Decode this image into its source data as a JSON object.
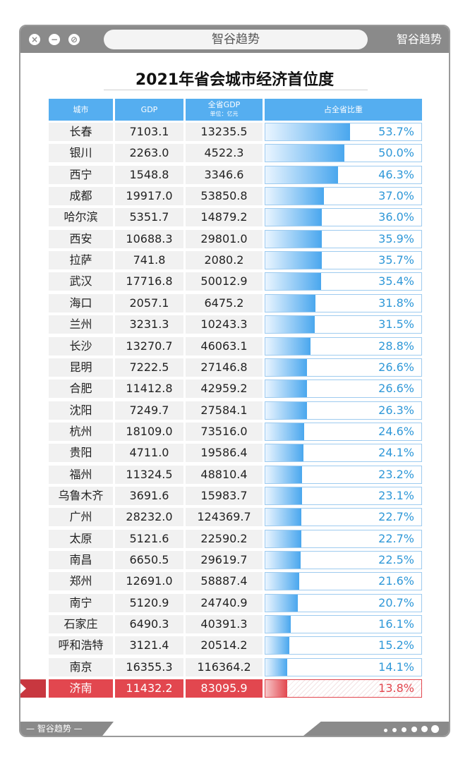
{
  "window": {
    "title": "智谷趋势",
    "brand": "智谷趋势",
    "footer_brand": "— 智谷趋势 —"
  },
  "chart_data": {
    "type": "table",
    "title": "2021年省会城市经济首位度",
    "columns": {
      "city": "城市",
      "gdp": "GDP",
      "prov_gdp": "全省GDP",
      "prov_gdp_unit": "单位：亿元",
      "share": "占全省比重"
    },
    "rows": [
      {
        "city": "长春",
        "gdp": "7103.1",
        "prov_gdp": "13235.5",
        "share": 53.7,
        "share_label": "53.7%"
      },
      {
        "city": "银川",
        "gdp": "2263.0",
        "prov_gdp": "4522.3",
        "share": 50.0,
        "share_label": "50.0%"
      },
      {
        "city": "西宁",
        "gdp": "1548.8",
        "prov_gdp": "3346.6",
        "share": 46.3,
        "share_label": "46.3%"
      },
      {
        "city": "成都",
        "gdp": "19917.0",
        "prov_gdp": "53850.8",
        "share": 37.0,
        "share_label": "37.0%"
      },
      {
        "city": "哈尔滨",
        "gdp": "5351.7",
        "prov_gdp": "14879.2",
        "share": 36.0,
        "share_label": "36.0%"
      },
      {
        "city": "西安",
        "gdp": "10688.3",
        "prov_gdp": "29801.0",
        "share": 35.9,
        "share_label": "35.9%"
      },
      {
        "city": "拉萨",
        "gdp": "741.8",
        "prov_gdp": "2080.2",
        "share": 35.7,
        "share_label": "35.7%"
      },
      {
        "city": "武汉",
        "gdp": "17716.8",
        "prov_gdp": "50012.9",
        "share": 35.4,
        "share_label": "35.4%"
      },
      {
        "city": "海口",
        "gdp": "2057.1",
        "prov_gdp": "6475.2",
        "share": 31.8,
        "share_label": "31.8%"
      },
      {
        "city": "兰州",
        "gdp": "3231.3",
        "prov_gdp": "10243.3",
        "share": 31.5,
        "share_label": "31.5%"
      },
      {
        "city": "长沙",
        "gdp": "13270.7",
        "prov_gdp": "46063.1",
        "share": 28.8,
        "share_label": "28.8%"
      },
      {
        "city": "昆明",
        "gdp": "7222.5",
        "prov_gdp": "27146.8",
        "share": 26.6,
        "share_label": "26.6%"
      },
      {
        "city": "合肥",
        "gdp": "11412.8",
        "prov_gdp": "42959.2",
        "share": 26.6,
        "share_label": "26.6%"
      },
      {
        "city": "沈阳",
        "gdp": "7249.7",
        "prov_gdp": "27584.1",
        "share": 26.3,
        "share_label": "26.3%"
      },
      {
        "city": "杭州",
        "gdp": "18109.0",
        "prov_gdp": "73516.0",
        "share": 24.6,
        "share_label": "24.6%"
      },
      {
        "city": "贵阳",
        "gdp": "4711.0",
        "prov_gdp": "19586.4",
        "share": 24.1,
        "share_label": "24.1%"
      },
      {
        "city": "福州",
        "gdp": "11324.5",
        "prov_gdp": "48810.4",
        "share": 23.2,
        "share_label": "23.2%"
      },
      {
        "city": "乌鲁木齐",
        "gdp": "3691.6",
        "prov_gdp": "15983.7",
        "share": 23.1,
        "share_label": "23.1%"
      },
      {
        "city": "广州",
        "gdp": "28232.0",
        "prov_gdp": "124369.7",
        "share": 22.7,
        "share_label": "22.7%"
      },
      {
        "city": "太原",
        "gdp": "5121.6",
        "prov_gdp": "22590.2",
        "share": 22.7,
        "share_label": "22.7%"
      },
      {
        "city": "南昌",
        "gdp": "6650.5",
        "prov_gdp": "29619.7",
        "share": 22.5,
        "share_label": "22.5%"
      },
      {
        "city": "郑州",
        "gdp": "12691.0",
        "prov_gdp": "58887.4",
        "share": 21.6,
        "share_label": "21.6%"
      },
      {
        "city": "南宁",
        "gdp": "5120.9",
        "prov_gdp": "24740.9",
        "share": 20.7,
        "share_label": "20.7%"
      },
      {
        "city": "石家庄",
        "gdp": "6490.3",
        "prov_gdp": "40391.3",
        "share": 16.1,
        "share_label": "16.1%"
      },
      {
        "city": "呼和浩特",
        "gdp": "3121.4",
        "prov_gdp": "20514.2",
        "share": 15.2,
        "share_label": "15.2%"
      },
      {
        "city": "南京",
        "gdp": "16355.3",
        "prov_gdp": "116364.2",
        "share": 14.1,
        "share_label": "14.1%"
      },
      {
        "city": "济南",
        "gdp": "11432.2",
        "prov_gdp": "83095.9",
        "share": 13.8,
        "share_label": "13.8%",
        "highlight": true
      }
    ],
    "share_axis_max": 100
  },
  "colors": {
    "header": "#55aef0",
    "bar": "#4aa7ee",
    "highlight": "#e2474f",
    "frame": "#8a8a8a"
  }
}
